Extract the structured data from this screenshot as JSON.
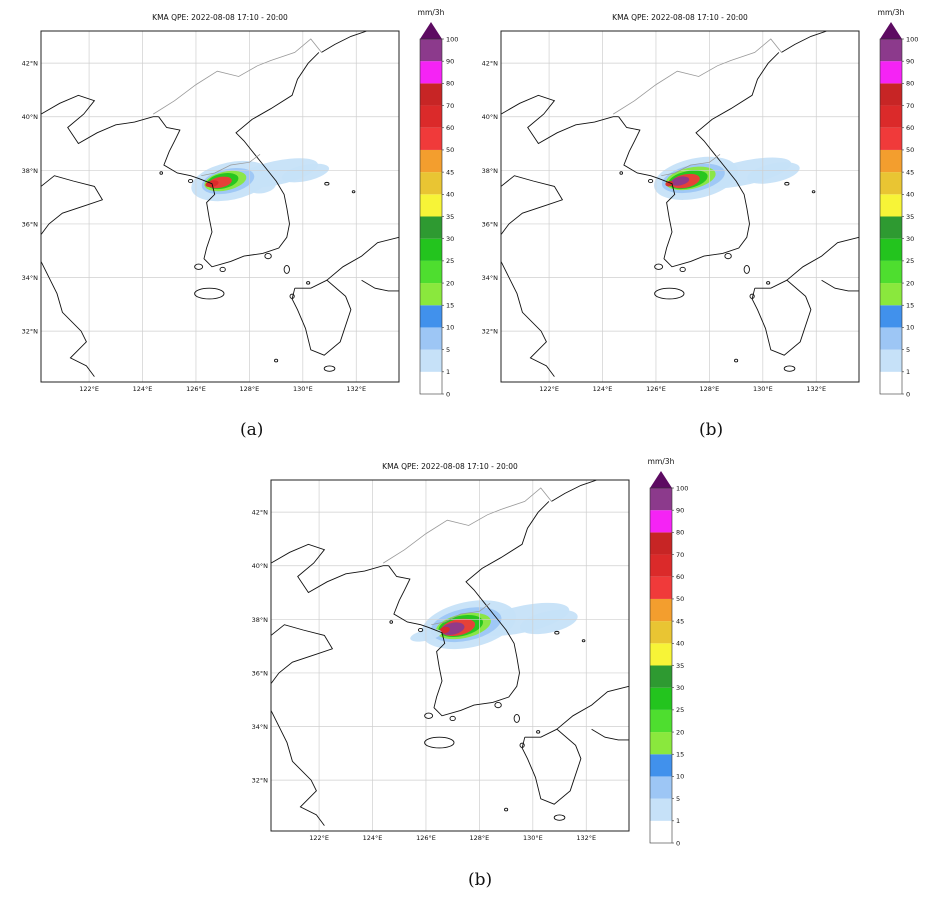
{
  "colorbar": {
    "unit": "mm/3h",
    "bins": [
      {
        "label": "0",
        "color": "#ffffff"
      },
      {
        "label": "1",
        "color": "#c6e1f8"
      },
      {
        "label": "5",
        "color": "#9dc6f5"
      },
      {
        "label": "10",
        "color": "#4191ec"
      },
      {
        "label": "15",
        "color": "#8ae83d"
      },
      {
        "label": "20",
        "color": "#4ede2f"
      },
      {
        "label": "25",
        "color": "#23c41e"
      },
      {
        "label": "30",
        "color": "#2e9a31"
      },
      {
        "label": "35",
        "color": "#f7f437"
      },
      {
        "label": "40",
        "color": "#e9c533"
      },
      {
        "label": "45",
        "color": "#f39e2e"
      },
      {
        "label": "50",
        "color": "#f03a3a"
      },
      {
        "label": "60",
        "color": "#db2a2a"
      },
      {
        "label": "70",
        "color": "#c72525"
      },
      {
        "label": "80",
        "color": "#f523f5"
      },
      {
        "label": "90",
        "color": "#8c3a8c"
      },
      {
        "label": "100",
        "color": "#5d0b62"
      }
    ]
  },
  "axes": {
    "lon_ticks": [
      "122°E",
      "124°E",
      "126°E",
      "128°E",
      "130°E",
      "132°E"
    ],
    "lat_ticks": [
      "32°N",
      "34°N",
      "36°N",
      "38°N",
      "40°N",
      "42°N"
    ]
  },
  "panels": [
    {
      "title": "KMA QPE: 2022-08-08 17:10 - 20:00",
      "caption": "(a)",
      "intensity": 0
    },
    {
      "title": "KMA QPE: 2022-08-08 17:10 - 20:00",
      "caption": "(b)",
      "intensity": 1
    },
    {
      "title": "KMA QPE: 2022-08-08 17:10 - 20:00",
      "caption": "(b)",
      "intensity": 2
    }
  ]
}
